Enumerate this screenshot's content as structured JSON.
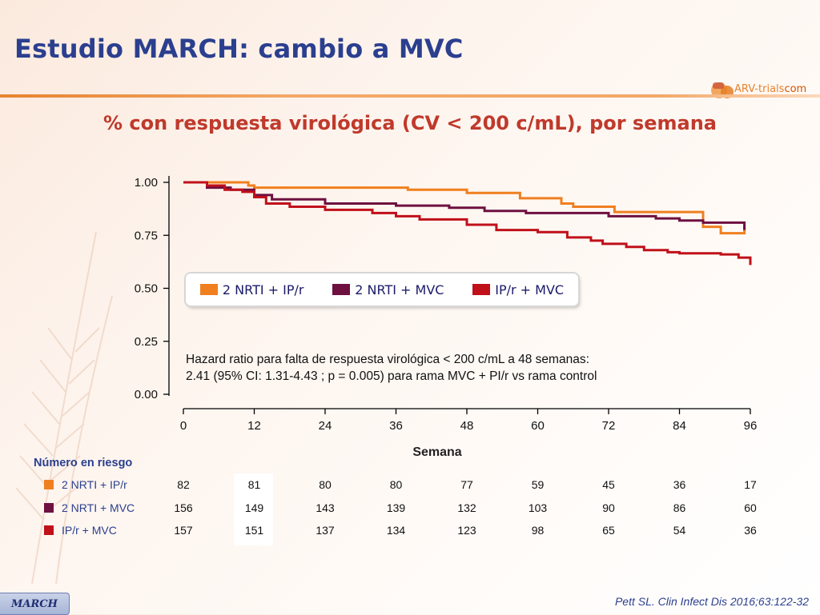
{
  "slide": {
    "title": "Estudio MARCH: cambio a MVC",
    "subtitle": "% con respuesta virológica (CV < 200 c/mL), por semana",
    "logo_text_a": "ARV-trials",
    "logo_text_b": "com",
    "march_tag": "MARCH",
    "citation": "Pett SL. Clin Infect Dis 2016;63:122-32",
    "hr_note_line1": "Hazard ratio para falta de respuesta virológica < 200 c/mL a 48 semanas:",
    "hr_note_line2": "2.41 (95% CI: 1.31-4.43 ; p = 0.005) para rama MVC + PI/r vs rama control",
    "risk_title": "Número en riesgo"
  },
  "chart_data": {
    "type": "line",
    "step": true,
    "title": "% con respuesta virológica (CV < 200 c/mL), por semana",
    "xlabel": "Semana",
    "ylabel": "",
    "xlim": [
      0,
      96
    ],
    "ylim": [
      0,
      1
    ],
    "x_ticks": [
      0,
      12,
      24,
      36,
      48,
      60,
      72,
      84,
      96
    ],
    "y_ticks": [
      0.0,
      0.25,
      0.5,
      0.75,
      1.0
    ],
    "y_tick_labels": [
      "0.00",
      "0.25",
      "0.50",
      "0.75",
      "1.00"
    ],
    "grid": false,
    "legend_position": "center, inside plot",
    "series": [
      {
        "name": "2 NRTI + IP/r",
        "color": "#f07f1f",
        "points": [
          [
            0,
            1.0
          ],
          [
            11,
            1.0
          ],
          [
            11,
            0.985
          ],
          [
            12,
            0.985
          ],
          [
            12,
            0.975
          ],
          [
            38,
            0.975
          ],
          [
            38,
            0.965
          ],
          [
            48,
            0.965
          ],
          [
            48,
            0.95
          ],
          [
            57,
            0.95
          ],
          [
            57,
            0.925
          ],
          [
            64,
            0.925
          ],
          [
            64,
            0.9
          ],
          [
            66,
            0.9
          ],
          [
            66,
            0.885
          ],
          [
            73,
            0.885
          ],
          [
            73,
            0.86
          ],
          [
            88,
            0.86
          ],
          [
            88,
            0.79
          ],
          [
            91,
            0.79
          ],
          [
            91,
            0.76
          ],
          [
            95,
            0.76
          ],
          [
            95,
            0.8
          ]
        ]
      },
      {
        "name": "2 NRTI + MVC",
        "color": "#6e1040",
        "points": [
          [
            0,
            1.0
          ],
          [
            4,
            1.0
          ],
          [
            4,
            0.975
          ],
          [
            8,
            0.975
          ],
          [
            8,
            0.965
          ],
          [
            12,
            0.965
          ],
          [
            12,
            0.94
          ],
          [
            15,
            0.94
          ],
          [
            15,
            0.92
          ],
          [
            24,
            0.92
          ],
          [
            24,
            0.9
          ],
          [
            36,
            0.9
          ],
          [
            36,
            0.89
          ],
          [
            45,
            0.89
          ],
          [
            45,
            0.88
          ],
          [
            51,
            0.88
          ],
          [
            51,
            0.865
          ],
          [
            58,
            0.865
          ],
          [
            58,
            0.855
          ],
          [
            72,
            0.855
          ],
          [
            72,
            0.84
          ],
          [
            80,
            0.84
          ],
          [
            80,
            0.83
          ],
          [
            84,
            0.83
          ],
          [
            84,
            0.82
          ],
          [
            88,
            0.82
          ],
          [
            88,
            0.81
          ],
          [
            95,
            0.81
          ],
          [
            95,
            0.775
          ]
        ]
      },
      {
        "name": "IP/r + MVC",
        "color": "#c0101a",
        "points": [
          [
            0,
            1.0
          ],
          [
            4,
            1.0
          ],
          [
            4,
            0.985
          ],
          [
            7,
            0.985
          ],
          [
            7,
            0.965
          ],
          [
            10,
            0.965
          ],
          [
            10,
            0.955
          ],
          [
            12,
            0.955
          ],
          [
            12,
            0.93
          ],
          [
            14,
            0.93
          ],
          [
            14,
            0.9
          ],
          [
            18,
            0.9
          ],
          [
            18,
            0.885
          ],
          [
            24,
            0.885
          ],
          [
            24,
            0.87
          ],
          [
            32,
            0.87
          ],
          [
            32,
            0.855
          ],
          [
            36,
            0.855
          ],
          [
            36,
            0.84
          ],
          [
            40,
            0.84
          ],
          [
            40,
            0.825
          ],
          [
            48,
            0.825
          ],
          [
            48,
            0.8
          ],
          [
            53,
            0.8
          ],
          [
            53,
            0.775
          ],
          [
            60,
            0.775
          ],
          [
            60,
            0.765
          ],
          [
            65,
            0.765
          ],
          [
            65,
            0.74
          ],
          [
            69,
            0.74
          ],
          [
            69,
            0.725
          ],
          [
            71,
            0.725
          ],
          [
            71,
            0.71
          ],
          [
            75,
            0.71
          ],
          [
            75,
            0.695
          ],
          [
            78,
            0.695
          ],
          [
            78,
            0.68
          ],
          [
            82,
            0.68
          ],
          [
            82,
            0.67
          ],
          [
            84,
            0.67
          ],
          [
            84,
            0.665
          ],
          [
            91,
            0.665
          ],
          [
            91,
            0.66
          ],
          [
            94,
            0.66
          ],
          [
            94,
            0.645
          ],
          [
            96,
            0.645
          ],
          [
            96,
            0.61
          ]
        ]
      }
    ],
    "risk_table": {
      "weeks": [
        0,
        12,
        24,
        36,
        48,
        60,
        72,
        84,
        96
      ],
      "rows": [
        {
          "label": "2 NRTI + IP/r",
          "color": "#f07f1f",
          "values": [
            82,
            81,
            80,
            80,
            77,
            59,
            45,
            36,
            17
          ]
        },
        {
          "label": "2 NRTI + MVC",
          "color": "#6e1040",
          "values": [
            156,
            149,
            143,
            139,
            132,
            103,
            90,
            86,
            60
          ]
        },
        {
          "label": "IP/r + MVC",
          "color": "#c0101a",
          "values": [
            157,
            151,
            137,
            134,
            123,
            98,
            65,
            54,
            36
          ]
        }
      ]
    }
  }
}
